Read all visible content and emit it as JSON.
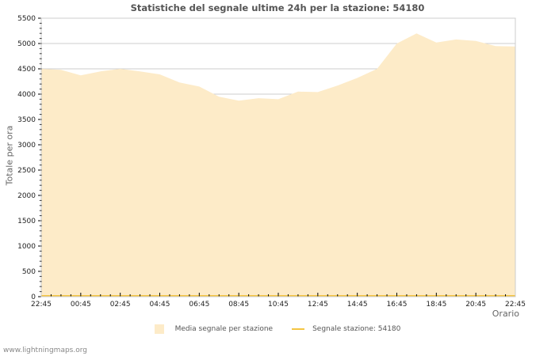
{
  "chart_data": {
    "type": "area",
    "title": "Statistiche del segnale ultime 24h per la stazione: 54180",
    "xlabel": "Orario",
    "ylabel": "Totale per ora",
    "ylim": [
      0,
      5500
    ],
    "yticks": [
      0,
      500,
      1000,
      1500,
      2000,
      2500,
      3000,
      3500,
      4000,
      4500,
      5000,
      5500
    ],
    "xtick_labels": [
      "22:45",
      "00:45",
      "02:45",
      "04:45",
      "06:45",
      "08:45",
      "10:45",
      "12:45",
      "14:45",
      "16:45",
      "18:45",
      "20:45",
      "22:45"
    ],
    "grid": true,
    "legend_position": "bottom",
    "x": [
      "22:45",
      "23:45",
      "00:45",
      "01:45",
      "02:45",
      "03:45",
      "04:45",
      "05:45",
      "06:45",
      "07:45",
      "08:45",
      "09:45",
      "10:45",
      "11:45",
      "12:45",
      "13:45",
      "14:45",
      "15:45",
      "16:45",
      "17:45",
      "18:45",
      "19:45",
      "20:45",
      "21:45",
      "22:45"
    ],
    "series": [
      {
        "name": "Media segnale per stazione",
        "style": "area",
        "color": "#fdebc8",
        "values": [
          4500,
          4480,
          4370,
          4450,
          4500,
          4450,
          4390,
          4230,
          4150,
          3950,
          3870,
          3920,
          3900,
          4050,
          4040,
          4170,
          4320,
          4500,
          5000,
          5200,
          5020,
          5080,
          5050,
          4950,
          4940
        ]
      },
      {
        "name": "Segnale stazione: 54180",
        "style": "line",
        "color": "#f4c542",
        "values": [
          0,
          0,
          0,
          0,
          0,
          0,
          0,
          0,
          0,
          0,
          0,
          0,
          0,
          0,
          0,
          0,
          0,
          0,
          0,
          0,
          0,
          0,
          0,
          0,
          0
        ]
      }
    ]
  },
  "legend": {
    "item1": "Media segnale per stazione",
    "item2": "Segnale stazione: 54180"
  },
  "footer": "www.lightningmaps.org"
}
